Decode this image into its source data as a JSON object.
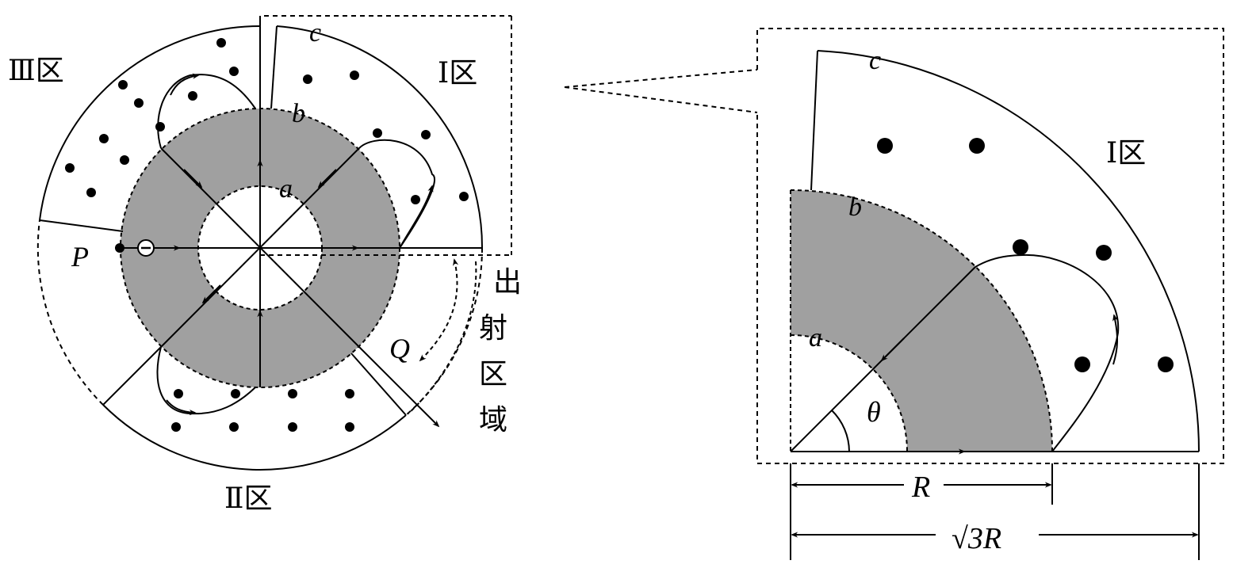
{
  "left_figure": {
    "region_1": "Ⅰ区",
    "region_2": "Ⅱ区",
    "region_3": "Ⅲ区",
    "label_a": "a",
    "label_b": "b",
    "label_c": "c",
    "label_P": "P",
    "label_Q": "Q",
    "exit_region": [
      "出",
      "射",
      "区",
      "域"
    ]
  },
  "right_figure": {
    "region_1": "Ⅰ区",
    "label_a": "a",
    "label_b": "b",
    "label_c": "c",
    "label_theta": "θ",
    "dim_R": "R",
    "dim_sqrt3R": "√3R"
  },
  "colors": {
    "shaded_ring": "#a0a0a0",
    "stroke": "#000000",
    "background": "#ffffff"
  }
}
